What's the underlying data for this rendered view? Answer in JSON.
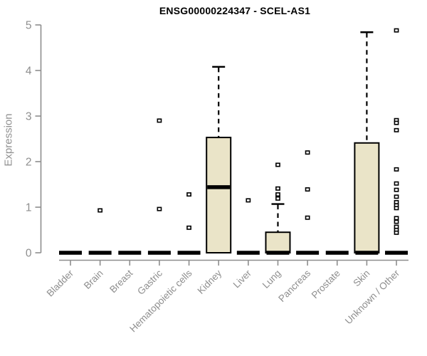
{
  "chart_data": {
    "type": "box",
    "title": "ENSG00000224347 - SCEL-AS1",
    "ylabel": "Expression",
    "xlabel": "",
    "ylim": [
      0,
      5
    ],
    "yticks": [
      0,
      1,
      2,
      3,
      4,
      5
    ],
    "grid": false,
    "legend": null,
    "colors": {
      "box_fill": "#EAE4C8",
      "box_border": "#000000",
      "median": "#000000",
      "whisker": "#000000",
      "outlier": "#000000",
      "axis": "#8e8e8e",
      "tick_label": "#8e8e8e",
      "title": "#000000"
    },
    "boxes": [
      {
        "category": "Bladder",
        "q1": 0,
        "median": 0,
        "q3": 0,
        "whisker_low": 0,
        "whisker_high": 0,
        "outliers": []
      },
      {
        "category": "Brain",
        "q1": 0,
        "median": 0,
        "q3": 0,
        "whisker_low": 0,
        "whisker_high": 0,
        "outliers": [
          0.93
        ]
      },
      {
        "category": "Breast",
        "q1": 0,
        "median": 0,
        "q3": 0,
        "whisker_low": 0,
        "whisker_high": 0,
        "outliers": []
      },
      {
        "category": "Gastric",
        "q1": 0,
        "median": 0,
        "q3": 0,
        "whisker_low": 0,
        "whisker_high": 0,
        "outliers": [
          2.9,
          0.96
        ]
      },
      {
        "category": "Hematopoietic cells",
        "q1": 0,
        "median": 0,
        "q3": 0,
        "whisker_low": 0,
        "whisker_high": 0,
        "outliers": [
          1.28,
          0.55
        ]
      },
      {
        "category": "Kidney",
        "q1": 0,
        "median": 1.44,
        "q3": 2.53,
        "whisker_low": 0,
        "whisker_high": 4.08,
        "outliers": []
      },
      {
        "category": "Liver",
        "q1": 0,
        "median": 0,
        "q3": 0,
        "whisker_low": 0,
        "whisker_high": 0,
        "outliers": [
          1.15
        ]
      },
      {
        "category": "Lung",
        "q1": 0,
        "median": 0,
        "q3": 0.45,
        "whisker_low": 0,
        "whisker_high": 1.07,
        "outliers": [
          1.93,
          1.41,
          1.28,
          1.19
        ]
      },
      {
        "category": "Pancreas",
        "q1": 0,
        "median": 0,
        "q3": 0,
        "whisker_low": 0,
        "whisker_high": 0,
        "outliers": [
          2.2,
          1.39,
          0.77
        ]
      },
      {
        "category": "Prostate",
        "q1": 0,
        "median": 0,
        "q3": 0,
        "whisker_low": 0,
        "whisker_high": 0,
        "outliers": []
      },
      {
        "category": "Skin",
        "q1": 0,
        "median": 0,
        "q3": 2.41,
        "whisker_low": 0,
        "whisker_high": 4.84,
        "outliers": []
      },
      {
        "category": "Unknown / Other",
        "q1": 0,
        "median": 0,
        "q3": 0,
        "whisker_low": 0,
        "whisker_high": 0,
        "outliers": [
          4.88,
          2.91,
          2.85,
          2.69,
          1.83,
          1.52,
          1.38,
          1.23,
          1.11,
          1.04,
          0.98,
          0.76,
          0.68,
          0.57,
          0.5,
          0.44
        ]
      }
    ]
  }
}
